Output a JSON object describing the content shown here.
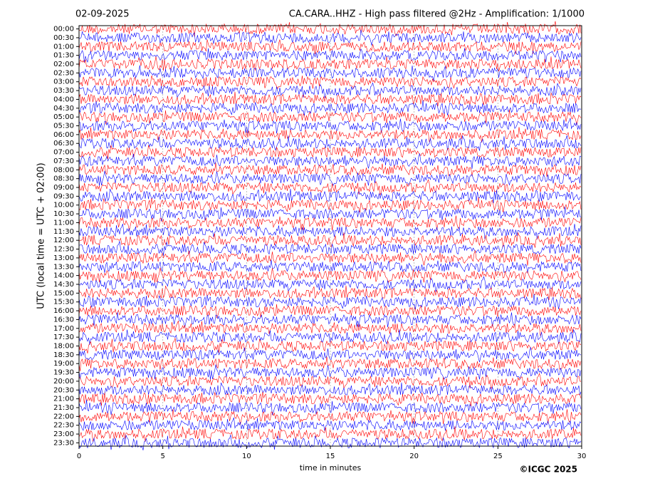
{
  "chart_data": {
    "type": "helicorder",
    "title_left": "02-09-2025",
    "title": "CA.CARA..HHZ - High pass filtered @2Hz - Amplification: 1/1000",
    "xlabel": "time in minutes",
    "ylabel": "UTC (local time = UTC + 02:00)",
    "credit": "©ICGC 2025",
    "xlim": [
      0,
      30
    ],
    "xticks": [
      0,
      5,
      10,
      15,
      20,
      25,
      30
    ],
    "ylim": [
      -0.185,
      23.685
    ],
    "y_inverted": true,
    "yticks": [
      {
        "value": 0,
        "label": "00:00"
      },
      {
        "value": 0.5,
        "label": "00:30"
      },
      {
        "value": 1,
        "label": "01:00"
      },
      {
        "value": 1.5,
        "label": "01:30"
      },
      {
        "value": 2,
        "label": "02:00"
      },
      {
        "value": 2.5,
        "label": "02:30"
      },
      {
        "value": 3,
        "label": "03:00"
      },
      {
        "value": 3.5,
        "label": "03:30"
      },
      {
        "value": 4,
        "label": "04:00"
      },
      {
        "value": 4.5,
        "label": "04:30"
      },
      {
        "value": 5,
        "label": "05:00"
      },
      {
        "value": 5.5,
        "label": "05:30"
      },
      {
        "value": 6,
        "label": "06:00"
      },
      {
        "value": 6.5,
        "label": "06:30"
      },
      {
        "value": 7,
        "label": "07:00"
      },
      {
        "value": 7.5,
        "label": "07:30"
      },
      {
        "value": 8,
        "label": "08:00"
      },
      {
        "value": 8.5,
        "label": "08:30"
      },
      {
        "value": 9,
        "label": "09:00"
      },
      {
        "value": 9.5,
        "label": "09:30"
      },
      {
        "value": 10,
        "label": "10:00"
      },
      {
        "value": 10.5,
        "label": "10:30"
      },
      {
        "value": 11,
        "label": "11:00"
      },
      {
        "value": 11.5,
        "label": "11:30"
      },
      {
        "value": 12,
        "label": "12:00"
      },
      {
        "value": 12.5,
        "label": "12:30"
      },
      {
        "value": 13,
        "label": "13:00"
      },
      {
        "value": 13.5,
        "label": "13:30"
      },
      {
        "value": 14,
        "label": "14:00"
      },
      {
        "value": 14.5,
        "label": "14:30"
      },
      {
        "value": 15,
        "label": "15:00"
      },
      {
        "value": 15.5,
        "label": "15:30"
      },
      {
        "value": 16,
        "label": "16:00"
      },
      {
        "value": 16.5,
        "label": "16:30"
      },
      {
        "value": 17,
        "label": "17:00"
      },
      {
        "value": 17.5,
        "label": "17:30"
      },
      {
        "value": 18,
        "label": "18:00"
      },
      {
        "value": 18.5,
        "label": "18:30"
      },
      {
        "value": 19,
        "label": "19:00"
      },
      {
        "value": 19.5,
        "label": "19:30"
      },
      {
        "value": 20,
        "label": "20:00"
      },
      {
        "value": 20.5,
        "label": "20:30"
      },
      {
        "value": 21,
        "label": "21:00"
      },
      {
        "value": 21.5,
        "label": "21:30"
      },
      {
        "value": 22,
        "label": "22:00"
      },
      {
        "value": 22.5,
        "label": "22:30"
      },
      {
        "value": 23,
        "label": "23:00"
      },
      {
        "value": 23.5,
        "label": "23:30"
      }
    ],
    "trace_colors": [
      "#ff0000",
      "#0000ff"
    ],
    "grid": true
  }
}
